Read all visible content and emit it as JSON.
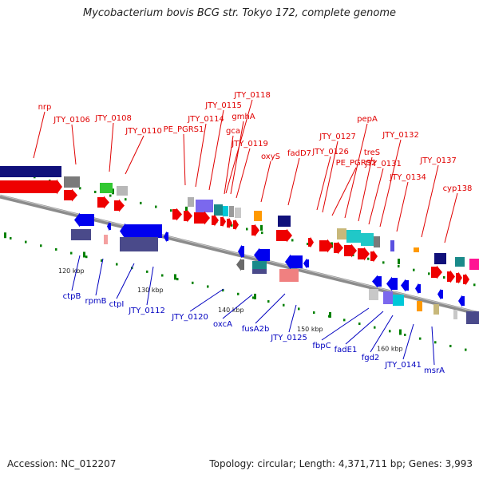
{
  "title": "Mycobacterium bovis BCG str. Tokyo 172, complete genome",
  "footer": {
    "accession": "Accession: NC_012207",
    "topology": "Topology: circular; Length: 4,371,711 bp; Genes: 3,993"
  },
  "colors": {
    "backbone": "#8c8c8c",
    "forward_label": "#e00000",
    "reverse_label": "#0000c0",
    "forward_gene": "#ee0000",
    "reverse_gene": "#0000ee",
    "tick": "#008000"
  },
  "ticks": [
    {
      "label": "120 kbp"
    },
    {
      "label": "130 kbp"
    },
    {
      "label": "140 kbp"
    },
    {
      "label": "150 kbp"
    },
    {
      "label": "160 kbp"
    }
  ],
  "forward_labels": [
    {
      "text": "nrp"
    },
    {
      "text": "JTY_0106"
    },
    {
      "text": "JTY_0108"
    },
    {
      "text": "JTY_0110"
    },
    {
      "text": "PE_PGRS1"
    },
    {
      "text": "JTY_0114"
    },
    {
      "text": "JTY_0115"
    },
    {
      "text": "JTY_0118"
    },
    {
      "text": "gmhA"
    },
    {
      "text": "gca"
    },
    {
      "text": "JTY_0119"
    },
    {
      "text": "oxyS"
    },
    {
      "text": "fadD7"
    },
    {
      "text": "JTY_0126"
    },
    {
      "text": "JTY_0127"
    },
    {
      "text": "PE_PGRS2"
    },
    {
      "text": "pepA"
    },
    {
      "text": "treS"
    },
    {
      "text": "JTY_0131"
    },
    {
      "text": "JTY_0132"
    },
    {
      "text": "JTY_0134"
    },
    {
      "text": "JTY_0137"
    },
    {
      "text": "cyp138"
    }
  ],
  "reverse_labels": [
    {
      "text": "ctpB"
    },
    {
      "text": "rpmB"
    },
    {
      "text": "ctpI"
    },
    {
      "text": "JTY_0112"
    },
    {
      "text": "JTY_0120"
    },
    {
      "text": "oxcA"
    },
    {
      "text": "fusA2b"
    },
    {
      "text": "JTY_0125"
    },
    {
      "text": "fbpC"
    },
    {
      "text": "fadE1"
    },
    {
      "text": "fgd2"
    },
    {
      "text": "JTY_0141"
    },
    {
      "text": "msrA"
    }
  ]
}
